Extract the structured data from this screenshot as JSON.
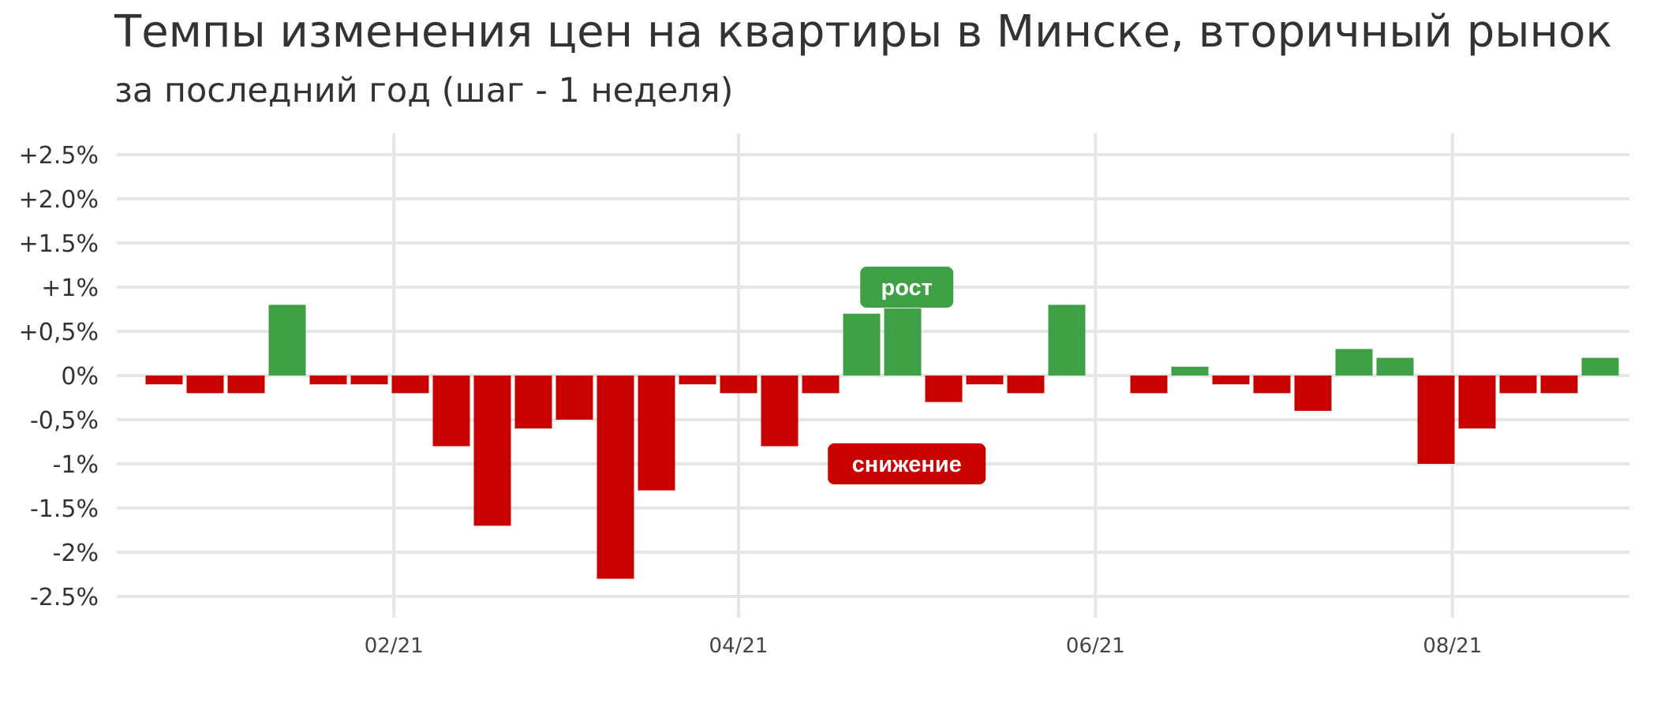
{
  "header": {
    "title": "Темпы изменения цен на квартиры в Минске, вторичный рынок",
    "subtitle": "за последний год (шаг - 1 неделя)"
  },
  "colors": {
    "up": "#3fa045",
    "down": "#c80000",
    "grid": "#e6e6e6",
    "text": "#333333"
  },
  "chart_data": {
    "type": "bar",
    "title": "Темпы изменения цен на квартиры в Минске, вторичный рынок",
    "subtitle": "за последний год (шаг - 1 неделя)",
    "xlabel": "",
    "ylabel": "",
    "unit": "%",
    "ylim": [
      -2.5,
      2.5
    ],
    "yticks": [
      {
        "value": 2.5,
        "label": "+2.5%"
      },
      {
        "value": 2.0,
        "label": "+2.0%"
      },
      {
        "value": 1.5,
        "label": "+1.5%"
      },
      {
        "value": 1.0,
        "label": "+1%"
      },
      {
        "value": 0.5,
        "label": "+0,5%"
      },
      {
        "value": 0,
        "label": "0%"
      },
      {
        "value": -0.5,
        "label": "-0,5%"
      },
      {
        "value": -1.0,
        "label": "-1%"
      },
      {
        "value": -1.5,
        "label": "-1.5%"
      },
      {
        "value": -2.0,
        "label": "-2%"
      },
      {
        "value": -2.5,
        "label": "-2.5%"
      }
    ],
    "xticks": [
      {
        "index": 5.6,
        "label": "02/21"
      },
      {
        "index": 14.0,
        "label": "04/21"
      },
      {
        "index": 22.7,
        "label": "06/21"
      },
      {
        "index": 31.4,
        "label": "08/21"
      }
    ],
    "values": [
      -0.1,
      -0.2,
      -0.2,
      0.8,
      -0.1,
      -0.1,
      -0.2,
      -0.8,
      -1.7,
      -0.6,
      -0.5,
      -2.3,
      -1.3,
      -0.1,
      -0.2,
      -0.8,
      -0.2,
      0.7,
      0.76,
      -0.3,
      -0.1,
      -0.2,
      0.8,
      0,
      -0.2,
      0.1,
      -0.1,
      -0.2,
      -0.4,
      0.3,
      0.2,
      -1.0,
      -0.6,
      -0.2,
      -0.2,
      0.2
    ],
    "grid": true,
    "annotations": [
      {
        "text": "рост",
        "kind": "up",
        "x": 18.1,
        "y": 1.0
      },
      {
        "text": "снижение",
        "kind": "down",
        "x": 18.1,
        "y": -1.0
      }
    ]
  }
}
